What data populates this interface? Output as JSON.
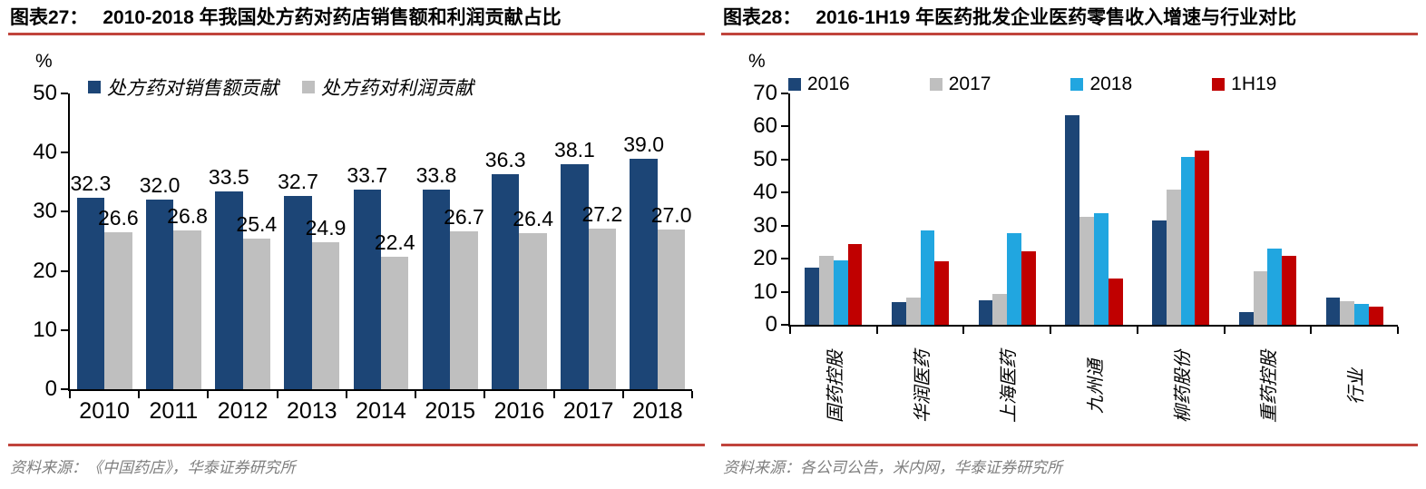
{
  "panels": {
    "left": {
      "fig_label": "图表27：",
      "title": "2010-2018 年我国处方药对药店销售额和利润贡献占比",
      "unit_label": "%",
      "source": "资料来源：《中国药店》，华泰证券研究所"
    },
    "right": {
      "fig_label": "图表28：",
      "title": "2016-1H19 年医药批发企业医药零售收入增速与行业对比",
      "unit_label": "%",
      "source": "资料来源：各公司公告，米内网，华泰证券研究所"
    }
  },
  "colors": {
    "navy": "#1C4576",
    "gray": "#BFBFBF",
    "cyan": "#21A6E0",
    "red": "#C00000",
    "rule_red": "#C0443C",
    "source_gray": "#7F7F7F"
  },
  "chart_data": [
    {
      "id": "left",
      "type": "bar",
      "title": "2010-2018 年我国处方药对药店销售额和利润贡献占比",
      "ylabel": "%",
      "ylim": [
        0,
        50
      ],
      "ytick_step": 10,
      "grid": false,
      "legend_position": "top",
      "value_labels": true,
      "value_decimals": 1,
      "xtick_rotate": false,
      "categories": [
        "2010",
        "2011",
        "2012",
        "2013",
        "2014",
        "2015",
        "2016",
        "2017",
        "2018"
      ],
      "series": [
        {
          "name": "处方药对销售额贡献",
          "color": "#1C4576",
          "values": [
            32.3,
            32.0,
            33.5,
            32.7,
            33.7,
            33.8,
            36.3,
            38.1,
            39.0
          ]
        },
        {
          "name": "处方药对利润贡献",
          "color": "#BFBFBF",
          "values": [
            26.6,
            26.8,
            25.4,
            24.9,
            22.4,
            26.7,
            26.4,
            27.2,
            27.0
          ]
        }
      ]
    },
    {
      "id": "right",
      "type": "bar",
      "title": "2016-1H19 年医药批发企业医药零售收入增速与行业对比",
      "ylabel": "%",
      "ylim": [
        0,
        70
      ],
      "ytick_step": 10,
      "grid": false,
      "legend_position": "top",
      "value_labels": false,
      "xtick_rotate": true,
      "categories": [
        "国药控股",
        "华润医药",
        "上海医药",
        "九州通",
        "柳药股份",
        "重药控股",
        "行业"
      ],
      "series": [
        {
          "name": "2016",
          "color": "#1C4576",
          "values": [
            17.2,
            7.0,
            7.3,
            63.5,
            31.5,
            3.9,
            8.2
          ]
        },
        {
          "name": "2017",
          "color": "#BFBFBF",
          "values": [
            21.0,
            8.3,
            9.3,
            32.6,
            41.0,
            16.2,
            7.2
          ]
        },
        {
          "name": "2018",
          "color": "#21A6E0",
          "values": [
            19.5,
            28.6,
            27.7,
            33.8,
            50.7,
            23.0,
            6.3
          ]
        },
        {
          "name": "1H19",
          "color": "#C00000",
          "values": [
            24.5,
            19.2,
            22.3,
            14.1,
            52.7,
            21.0,
            5.6
          ]
        }
      ]
    }
  ]
}
